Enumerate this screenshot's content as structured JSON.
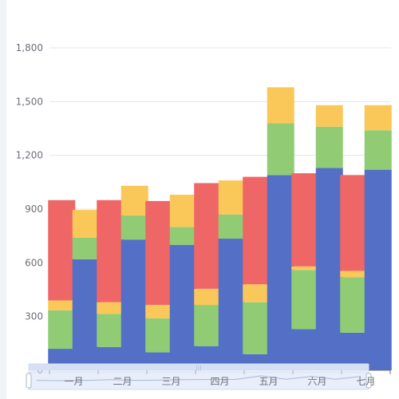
{
  "chart_data": {
    "type": "bar",
    "stacked_groups": 2,
    "ylim": [
      0,
      1800
    ],
    "yticks": [
      0,
      300,
      600,
      900,
      1200,
      1500,
      1800
    ],
    "ytick_labels": [
      "0",
      "300",
      "600",
      "900",
      "1,200",
      "1,500",
      "1,800"
    ],
    "categories": [
      "一月",
      "二月",
      "三月",
      "四月",
      "五月",
      "六月",
      "七月"
    ],
    "first_category_index": 0.5,
    "bars": [
      {
        "x": 0.25,
        "segments": [
          {
            "value": 120,
            "color": "#5470c6"
          },
          {
            "value": 215,
            "color": "#91cc75"
          },
          {
            "value": 55,
            "color": "#fac858"
          },
          {
            "value": 560,
            "color": "#ee6666"
          }
        ]
      },
      {
        "x": 0.75,
        "segments": [
          {
            "value": 620,
            "color": "#5470c6"
          },
          {
            "value": 120,
            "color": "#91cc75"
          },
          {
            "value": 155,
            "color": "#fac858"
          }
        ]
      },
      {
        "x": 1.25,
        "segments": [
          {
            "value": 130,
            "color": "#5470c6"
          },
          {
            "value": 185,
            "color": "#91cc75"
          },
          {
            "value": 65,
            "color": "#fac858"
          },
          {
            "value": 570,
            "color": "#ee6666"
          }
        ]
      },
      {
        "x": 1.75,
        "segments": [
          {
            "value": 730,
            "color": "#5470c6"
          },
          {
            "value": 135,
            "color": "#91cc75"
          },
          {
            "value": 165,
            "color": "#fac858"
          }
        ]
      },
      {
        "x": 2.25,
        "segments": [
          {
            "value": 100,
            "color": "#5470c6"
          },
          {
            "value": 190,
            "color": "#91cc75"
          },
          {
            "value": 75,
            "color": "#fac858"
          },
          {
            "value": 580,
            "color": "#ee6666"
          }
        ]
      },
      {
        "x": 2.75,
        "segments": [
          {
            "value": 700,
            "color": "#5470c6"
          },
          {
            "value": 100,
            "color": "#91cc75"
          },
          {
            "value": 180,
            "color": "#fac858"
          }
        ]
      },
      {
        "x": 3.25,
        "segments": [
          {
            "value": 135,
            "color": "#5470c6"
          },
          {
            "value": 230,
            "color": "#91cc75"
          },
          {
            "value": 90,
            "color": "#fac858"
          },
          {
            "value": 590,
            "color": "#ee6666"
          }
        ]
      },
      {
        "x": 3.75,
        "segments": [
          {
            "value": 735,
            "color": "#5470c6"
          },
          {
            "value": 135,
            "color": "#91cc75"
          },
          {
            "value": 190,
            "color": "#fac858"
          }
        ]
      },
      {
        "x": 4.25,
        "segments": [
          {
            "value": 90,
            "color": "#5470c6"
          },
          {
            "value": 290,
            "color": "#91cc75"
          },
          {
            "value": 100,
            "color": "#fac858"
          },
          {
            "value": 600,
            "color": "#ee6666"
          }
        ]
      },
      {
        "x": 4.75,
        "segments": [
          {
            "value": 1090,
            "color": "#5470c6"
          },
          {
            "value": 290,
            "color": "#91cc75"
          },
          {
            "value": 200,
            "color": "#fac858"
          }
        ]
      },
      {
        "x": 5.25,
        "segments": [
          {
            "value": 230,
            "color": "#5470c6"
          },
          {
            "value": 330,
            "color": "#91cc75"
          },
          {
            "value": 20,
            "color": "#fac858"
          },
          {
            "value": 520,
            "color": "#ee6666"
          }
        ]
      },
      {
        "x": 5.75,
        "segments": [
          {
            "value": 1130,
            "color": "#5470c6"
          },
          {
            "value": 230,
            "color": "#91cc75"
          },
          {
            "value": 120,
            "color": "#fac858"
          }
        ]
      },
      {
        "x": 6.25,
        "segments": [
          {
            "value": 210,
            "color": "#5470c6"
          },
          {
            "value": 310,
            "color": "#91cc75"
          },
          {
            "value": 35,
            "color": "#fac858"
          },
          {
            "value": 535,
            "color": "#ee6666"
          }
        ]
      },
      {
        "x": 6.75,
        "segments": [
          {
            "value": 1120,
            "color": "#5470c6"
          },
          {
            "value": 220,
            "color": "#91cc75"
          },
          {
            "value": 140,
            "color": "#fac858"
          }
        ]
      }
    ],
    "datazoom": {
      "start_fraction": 0,
      "end_fraction": 1
    },
    "colors": {
      "blue": "#5470c6",
      "green": "#91cc75",
      "yellow": "#fac858",
      "red": "#ee6666",
      "grid": "#e0e6f1",
      "axis": "#6e7079",
      "slider_fill": "#d6e0f5",
      "slider_border": "#d2dbee",
      "handle": "#a7b7cc"
    }
  }
}
